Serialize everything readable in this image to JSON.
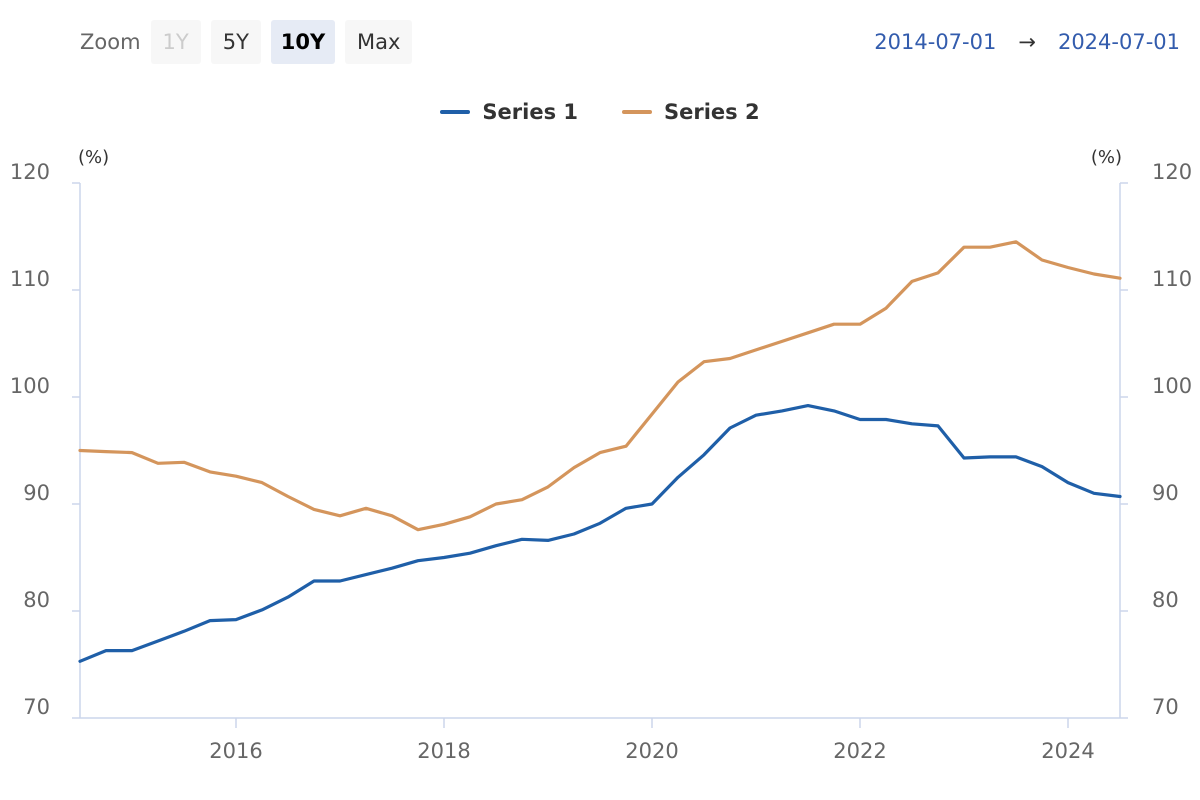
{
  "range_selector": {
    "zoom_label": "Zoom",
    "buttons": [
      {
        "label": "1Y",
        "state": "disabled"
      },
      {
        "label": "5Y",
        "state": "normal"
      },
      {
        "label": "10Y",
        "state": "selected"
      },
      {
        "label": "Max",
        "state": "normal"
      }
    ],
    "from": "2014-07-01",
    "arrow": "→",
    "to": "2024-07-01"
  },
  "colors": {
    "series1": "#1f5fa8",
    "series2": "#d4955c",
    "axis": "#ccd6eb",
    "tick_label": "#666666"
  },
  "chart_data": {
    "type": "line",
    "title": "",
    "xlabel": "",
    "ylabel_left": "(%)",
    "ylabel_right": "(%)",
    "xlim": [
      2014.5,
      2024.5
    ],
    "ylim": [
      70,
      120
    ],
    "x_ticks": [
      2016,
      2018,
      2020,
      2022,
      2024
    ],
    "x_tick_labels": [
      "2016",
      "2018",
      "2020",
      "2022",
      "2024"
    ],
    "y_ticks": [
      70,
      80,
      90,
      100,
      110,
      120
    ],
    "y_tick_labels": [
      "70",
      "80",
      "90",
      "100",
      "110",
      "120"
    ],
    "grid": false,
    "legend_position": "top-center",
    "x": [
      2014.5,
      2014.75,
      2015.0,
      2015.25,
      2015.5,
      2015.75,
      2016.0,
      2016.25,
      2016.5,
      2016.75,
      2017.0,
      2017.25,
      2017.5,
      2017.75,
      2018.0,
      2018.25,
      2018.5,
      2018.75,
      2019.0,
      2019.25,
      2019.5,
      2019.75,
      2020.0,
      2020.25,
      2020.5,
      2020.75,
      2021.0,
      2021.25,
      2021.5,
      2021.75,
      2022.0,
      2022.25,
      2022.5,
      2022.75,
      2023.0,
      2023.25,
      2023.5,
      2023.75,
      2024.0,
      2024.25,
      2024.5
    ],
    "series": [
      {
        "name": "Series 1",
        "color": "#1f5fa8",
        "values": [
          75.3,
          76.3,
          76.3,
          77.2,
          78.1,
          79.1,
          79.2,
          80.1,
          81.3,
          82.8,
          82.8,
          83.4,
          84.0,
          84.7,
          85.0,
          85.4,
          86.1,
          86.7,
          86.6,
          87.2,
          88.2,
          89.6,
          90.0,
          92.5,
          94.6,
          97.1,
          98.3,
          98.7,
          99.2,
          98.7,
          97.9,
          97.9,
          97.5,
          97.3,
          94.3,
          94.4,
          94.4,
          93.5,
          92.0,
          91.0,
          90.7
        ]
      },
      {
        "name": "Series 2",
        "color": "#d4955c",
        "values": [
          95.0,
          94.9,
          94.8,
          93.8,
          93.9,
          93.0,
          92.6,
          92.0,
          90.7,
          89.5,
          88.9,
          89.6,
          88.9,
          87.6,
          88.1,
          88.8,
          90.0,
          90.4,
          91.6,
          93.4,
          94.8,
          95.4,
          98.4,
          101.4,
          103.3,
          103.6,
          104.4,
          105.2,
          106.0,
          106.8,
          106.8,
          108.3,
          110.8,
          111.6,
          114.0,
          114.0,
          114.5,
          112.8,
          112.1,
          111.5,
          111.1
        ]
      }
    ]
  }
}
